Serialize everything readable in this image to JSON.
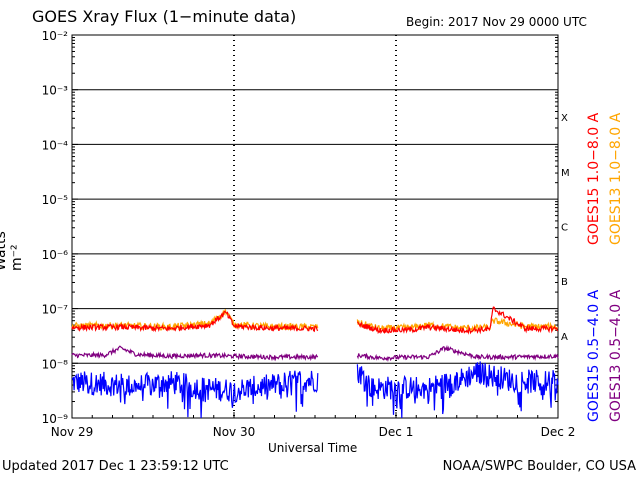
{
  "header": {
    "title": "GOES Xray Flux (1−minute data)",
    "begin": "Begin:  2017 Nov 29 0000 UTC"
  },
  "footer": {
    "updated": "Updated 2017 Dec  1 23:59:12 UTC",
    "credit": "NOAA/SWPC Boulder, CO USA"
  },
  "chart_data": {
    "type": "line",
    "title": "GOES Xray Flux (1−minute data)",
    "xlabel": "Universal Time",
    "ylabel": "Watts m⁻²",
    "yscale": "log",
    "ylim": [
      1e-09,
      0.01
    ],
    "y_ticks": [
      "10⁻²",
      "10⁻³",
      "10⁻⁴",
      "10⁻⁵",
      "10⁻⁶",
      "10⁻⁷",
      "10⁻⁸",
      "10⁻⁹"
    ],
    "x_tick_labels": [
      "Nov 29",
      "Nov 30",
      "Dec 1",
      "Dec 2"
    ],
    "xlim_days": [
      0,
      3
    ],
    "flare_classes": [
      "X",
      "M",
      "C",
      "B",
      "A"
    ],
    "data_gap_days": [
      1.52,
      1.76
    ],
    "series": [
      {
        "name": "GOES15 1.0−8.0 A",
        "color": "#ff0000",
        "x_days": [
          0,
          0.3,
          0.6,
          0.85,
          0.95,
          1.0,
          1.2,
          1.52,
          1.76,
          1.9,
          2.1,
          2.2,
          2.4,
          2.58,
          2.6,
          2.8,
          3.0
        ],
        "values": [
          4.5e-08,
          4.6e-08,
          4.3e-08,
          5e-08,
          8.5e-08,
          4.8e-08,
          4.4e-08,
          4.3e-08,
          5.2e-08,
          4e-08,
          4.1e-08,
          4.6e-08,
          4e-08,
          4.2e-08,
          1e-07,
          4.3e-08,
          4.3e-08
        ]
      },
      {
        "name": "GOES13 1.0−8.0 A",
        "color": "#ffa500",
        "x_days": [
          0,
          0.3,
          0.6,
          0.85,
          0.95,
          1.0,
          1.2,
          1.52,
          1.76,
          1.9,
          2.1,
          2.2,
          2.4,
          2.58,
          2.6,
          2.8,
          3.0
        ],
        "values": [
          4.8e-08,
          4.9e-08,
          4.6e-08,
          5.3e-08,
          9e-08,
          5.1e-08,
          4.7e-08,
          4.6e-08,
          5.6e-08,
          4.3e-08,
          4.5e-08,
          5e-08,
          4.4e-08,
          4.5e-08,
          6e-08,
          4.7e-08,
          4.6e-08
        ]
      },
      {
        "name": "GOES15 0.5−4.0 A",
        "color": "#0000ff",
        "x_days": [
          0,
          0.2,
          0.4,
          0.6,
          0.8,
          1.0,
          1.2,
          1.4,
          1.52,
          1.76,
          1.85,
          2.0,
          2.2,
          2.4,
          2.5,
          2.7,
          2.9,
          3.0
        ],
        "values": [
          4.5e-09,
          4.2e-09,
          3.8e-09,
          4.5e-09,
          3.5e-09,
          3.2e-09,
          3.8e-09,
          4.8e-09,
          5e-09,
          8e-09,
          3.5e-09,
          3.6e-09,
          3.5e-09,
          5e-09,
          7e-09,
          5e-09,
          4.5e-09,
          4.5e-09
        ]
      },
      {
        "name": "GOES13 0.5−4.0 A",
        "color": "#800080",
        "x_days": [
          0,
          0.2,
          0.3,
          0.4,
          0.6,
          0.8,
          1.0,
          1.2,
          1.52,
          1.76,
          1.9,
          2.1,
          2.2,
          2.3,
          2.5,
          2.7,
          3.0
        ],
        "values": [
          1.4e-08,
          1.4e-08,
          1.9e-08,
          1.45e-08,
          1.35e-08,
          1.4e-08,
          1.35e-08,
          1.3e-08,
          1.3e-08,
          1.4e-08,
          1.25e-08,
          1.3e-08,
          1.3e-08,
          1.9e-08,
          1.3e-08,
          1.3e-08,
          1.35e-08
        ]
      }
    ],
    "legend_right": [
      "GOES15 1.0−8.0 A",
      "GOES13 1.0−8.0 A",
      "GOES15 0.5−4.0 A",
      "GOES13 0.5−4.0 A"
    ]
  }
}
